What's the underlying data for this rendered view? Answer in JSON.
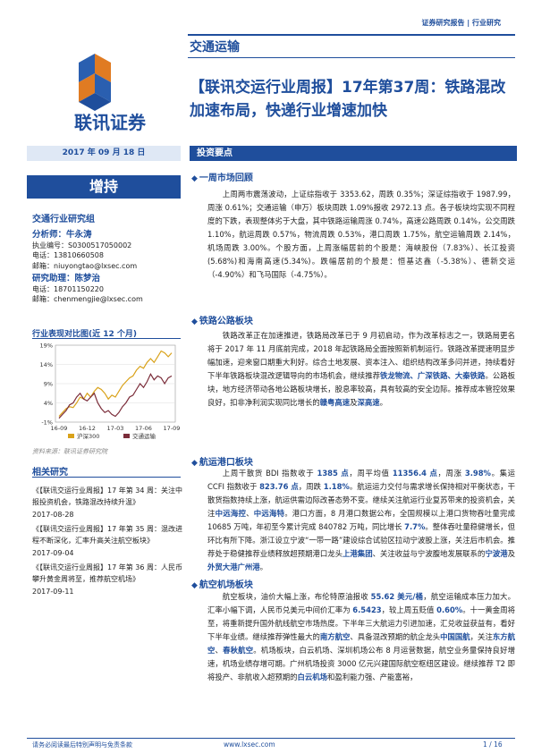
{
  "header": {
    "report_type": "证券研究报告 | 行业研究",
    "sector": "交通运输",
    "company": "联讯证券",
    "title": "【联讯交运行业周报】17年第37周：铁路混改加速布局，快递行业增速加快"
  },
  "sidebar": {
    "date": "2017 年 09 月 18 日",
    "rating": "增持",
    "group": "交通行业研究组",
    "analyst": {
      "heading": "分析师：牛永涛",
      "license": "执业编号：S0300517050002",
      "phone": "电话：13810660508",
      "email": "邮箱：niuyongtao@lxsec.com"
    },
    "assistant": {
      "heading": "研究助理：陈梦治",
      "phone": "电话：18701150220",
      "email": "邮箱：chenmengjie@lxsec.com"
    },
    "chart_title": "行业表现对比图(近 12 个月)",
    "chart_source": "资料来源：联讯证券研究院",
    "related_heading": "相关研究",
    "related": [
      {
        "text": "《【联讯交运行业周报】17 年第 34 周：关注中报投资机会，铁路混改持续升温》",
        "date": "2017-08-28"
      },
      {
        "text": "《【联讯交运行业周报】17 年第 35 周：混改进程不断深化，汇率升高关注航空板块》",
        "date": "2017-09-04"
      },
      {
        "text": "《【联讯交运行业周报】17 年第 36 周：人民币攀升黄金周将至，推荐航空机场》",
        "date": "2017-09-11"
      }
    ]
  },
  "chart_data": {
    "type": "line",
    "title": "行业表现对比图(近 12 个月)",
    "x_ticks": [
      "16-09",
      "16-12",
      "17-03",
      "17-06",
      "17-09"
    ],
    "y_ticks": [
      "-1%",
      "4%",
      "9%",
      "14%",
      "19%"
    ],
    "ylim": [
      -1,
      19
    ],
    "series": [
      {
        "name": "沪深300",
        "color": "#d9a21a",
        "values": [
          0.5,
          1.5,
          2.5,
          3.0,
          2.8,
          4.0,
          5.5,
          5.0,
          6.5,
          5.5,
          7.0,
          8.0,
          7.5,
          6.5,
          5.0,
          6.0,
          5.5,
          7.0,
          8.5,
          9.5,
          10.5,
          11.0,
          12.5,
          13.5,
          13.0,
          14.5,
          15.5,
          14.5,
          16.0,
          17.5,
          17.0,
          16.0,
          17.0
        ]
      },
      {
        "name": "交通运输",
        "color": "#7b2d3a",
        "values": [
          0.0,
          1.0,
          2.0,
          3.5,
          4.0,
          5.5,
          6.5,
          5.0,
          4.5,
          5.5,
          6.5,
          4.0,
          2.5,
          1.5,
          2.0,
          1.0,
          0.5,
          1.5,
          3.0,
          4.0,
          5.5,
          6.0,
          7.5,
          9.0,
          8.0,
          9.5,
          11.5,
          10.0,
          11.0,
          10.5,
          9.0,
          10.5,
          11.0
        ]
      }
    ]
  },
  "main": {
    "section_title": "投资要点",
    "sections": [
      {
        "heading": "一周市场回顾",
        "html": "<p>上周两市震荡波动，上证综指收于 3353.62，周跌 0.35%；深证综指收于 1987.99，周涨 0.61%；交通运输（申万）板块周跌 1.09%报收 2972.13 点。各子板块均实现不同程度的下跌，表现整体劣于大盘，其中铁路运输周涨 0.74%，高速公路周跌 0.14%，公交周跌 1.10%，航运周跌 0.57%，物流周跌 0.53%，港口周跌 1.75%，航空运输周跌 2.14%，机场周跌 3.00%。个股方面，上周涨幅居前的个股是：海峡股份（7.83%）、长江投资(5.68%)和海南高速(5.34%)。跌幅居前的个股是：恒基达鑫（-5.38%）、德新交运（-4.90%）和飞马国际（-4.75%）。</p>"
      },
      {
        "heading": "铁路公路板块",
        "html": "<p>铁路改革正在加速推进，铁路局改革已于 9 月初启动，作为改革标志之一，铁路局更名将于 2017 年 11 月底前完成，2018 年起铁路局全面按照新机制运行。铁路改革提速明显步幅加速，迎来窗口期重大利好。综合土地发展、资本注入、组织结构改革多问并进，持续看好下半年铁路板块混改逻辑导向的市场机会，继续推荐<b>铁龙物流、广深铁路、大秦铁路</b>。公路板块，地方经济带动各地公路板块增长，股息率较高，具有较高的安全边际。推荐成本管控效果良好，扣非净利润实现同比增长的<b>赣粤高速</b>及<b>深高速</b>。</p>"
      },
      {
        "heading": "航运港口板块",
        "html": "<p>上周干散货 BDI 指数收于 <b>1385 点</b>，周平均值 <b>11356.4 点</b>，周涨 <b>3.98%</b>。集运 CCFI 指数收于 <b>823.76 点</b>，周跌 <b>1.18%</b>。航运运力交付与需求增长保持相对平衡状态，干散货指数持续上涨，航运供需边际改善态势不变。继续关注航运行业复苏带来的投资机会，关注<b>中远海控</b>、<b>中远海特</b>。港口方面，8 月港口数据公布，全国规模以上港口货物吞吐量完成 10685 万吨，年初至今累计完成 840782 万吨，同比增长 <b>7.7%</b>。整体吞吐量稳健增长，但环比有所下降。浙江设立宁波“一带一路”建设综合试验区拉动宁波股上涨，关注后市机会。推荐处于稳健推荐业绩释放超预期港口龙头<b>上港集团</b>、关注收益与宁波腹地发展联系的<b>宁波港</b>及<b>外贸大港广州港</b>。</p>"
      },
      {
        "heading": "航空机场板块",
        "html": "<p>航空板块，油价大幅上涨，布伦特原油报收 <b>55.62 美元/桶</b>，航空运输成本压力加大。汇率小幅下调，人民币兑美元中间价汇率为 <b>6.5423</b>，较上周五贬值 <b>0.60%</b>。十一黄金周将至，将重新提升国外航线航空市场热度。下半年三大航运力引进加速，汇兑收益获益有，看好下半年业绩。继续推荐弹性最大的<b>南方航空</b>、具备混改预期的航企龙头<b>中国国航</b>，关注<b>东方航空</b>、<b>春秋航空</b>。机场板块，白云机场、深圳机场公布 8 月运营数据，航空业务量保持良好增速，机场业绩存增可期。广州机场投资 3000 亿元兴建国际航空枢纽区建设。继续推荐 T2 即将投产、非航收入超预期的<b>白云机场</b>和盈利能力强、产能富裕，</p>"
      }
    ]
  },
  "footer": {
    "disclaimer": "请务必阅读最后特别声明与免责条款",
    "website": "www.lxsec.com",
    "page": "1 / 16"
  }
}
